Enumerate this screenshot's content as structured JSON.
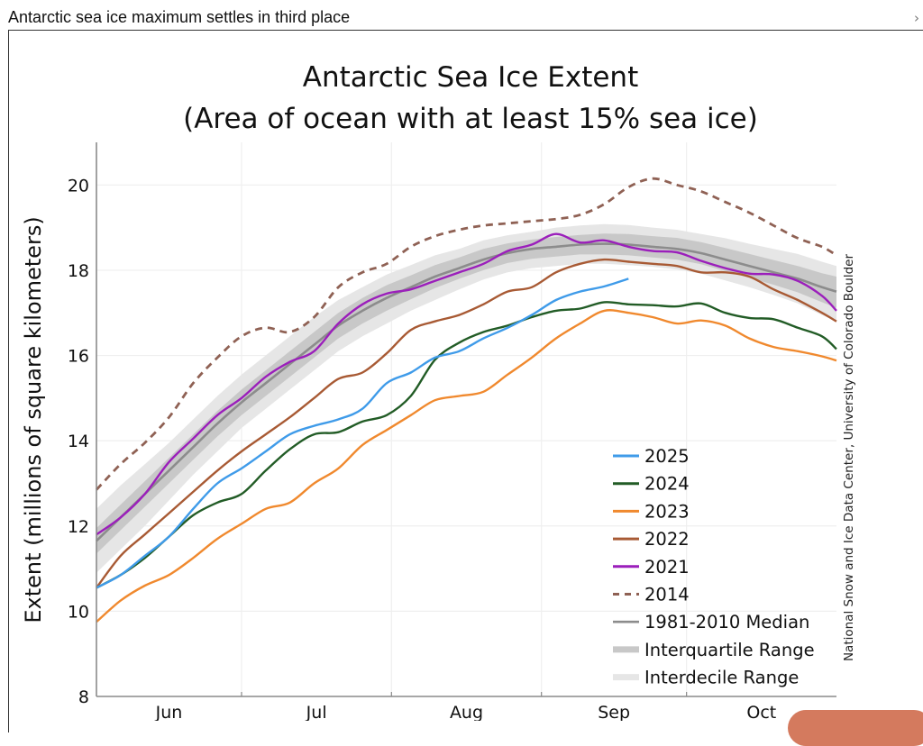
{
  "page": {
    "heading": "Antarctic sea ice maximum settles in third place",
    "close_icon": "chevron-right-icon",
    "close_glyph": "›"
  },
  "chart_data": {
    "type": "line",
    "title": "Antarctic Sea Ice Extent",
    "subtitle": "(Area of ocean with at least 15% sea ice)",
    "xlabel": "",
    "ylabel": "Extent (millions of square kilometers)",
    "credit": "National Snow and Ice Data Center, University of Colorado Boulder",
    "ylim": [
      8,
      21
    ],
    "yticks": [
      8,
      10,
      12,
      14,
      16,
      18,
      20
    ],
    "x_unit": "days since May 31",
    "xlim": [
      0,
      153
    ],
    "month_boundaries": [
      0,
      30,
      61,
      92,
      122,
      153
    ],
    "xtick_labels": [
      "Jun",
      "Jul",
      "Aug",
      "Sep",
      "Oct"
    ],
    "grid": true,
    "legend_position": "lower-right",
    "x": [
      0,
      5,
      10,
      15,
      20,
      25,
      30,
      35,
      40,
      45,
      50,
      55,
      60,
      65,
      70,
      75,
      80,
      85,
      90,
      95,
      100,
      105,
      110,
      115,
      120,
      125,
      130,
      135,
      140,
      145,
      150,
      153
    ],
    "median": {
      "name": "1981-2010 Median",
      "color": "#8c8c8c",
      "values": [
        11.65,
        12.2,
        12.75,
        13.3,
        13.85,
        14.4,
        14.9,
        15.35,
        15.8,
        16.25,
        16.7,
        17.05,
        17.35,
        17.6,
        17.85,
        18.05,
        18.25,
        18.4,
        18.5,
        18.55,
        18.6,
        18.62,
        18.6,
        18.55,
        18.5,
        18.4,
        18.25,
        18.1,
        17.95,
        17.8,
        17.6,
        17.5
      ]
    },
    "interquartile": {
      "name": "Interquartile Range",
      "color": "#c8c8c8",
      "lower": [
        11.35,
        11.9,
        12.45,
        13.0,
        13.55,
        14.1,
        14.6,
        15.05,
        15.5,
        15.95,
        16.4,
        16.75,
        17.05,
        17.32,
        17.58,
        17.8,
        18.0,
        18.17,
        18.27,
        18.32,
        18.37,
        18.37,
        18.35,
        18.3,
        18.25,
        18.14,
        17.98,
        17.82,
        17.66,
        17.48,
        17.25,
        17.12
      ],
      "upper": [
        11.95,
        12.5,
        13.05,
        13.6,
        14.15,
        14.7,
        15.2,
        15.65,
        16.1,
        16.55,
        17.0,
        17.35,
        17.65,
        17.88,
        18.12,
        18.3,
        18.5,
        18.63,
        18.72,
        18.78,
        18.83,
        18.86,
        18.85,
        18.8,
        18.76,
        18.66,
        18.52,
        18.38,
        18.24,
        18.1,
        17.93,
        17.85
      ]
    },
    "interdecile": {
      "name": "Interdecile Range",
      "color": "#e6e6e6",
      "lower": [
        10.9,
        11.45,
        12.0,
        12.6,
        13.2,
        13.75,
        14.3,
        14.75,
        15.2,
        15.65,
        16.1,
        16.45,
        16.75,
        17.05,
        17.3,
        17.55,
        17.78,
        17.95,
        18.05,
        18.1,
        18.15,
        18.15,
        18.12,
        18.08,
        18.02,
        17.92,
        17.76,
        17.6,
        17.42,
        17.22,
        16.95,
        16.8
      ],
      "upper": [
        12.4,
        12.95,
        13.45,
        13.95,
        14.5,
        15.05,
        15.55,
        16.0,
        16.45,
        16.9,
        17.3,
        17.6,
        17.9,
        18.12,
        18.35,
        18.5,
        18.7,
        18.82,
        18.9,
        19.0,
        19.05,
        19.08,
        19.06,
        19.0,
        18.95,
        18.85,
        18.75,
        18.62,
        18.5,
        18.38,
        18.2,
        18.1
      ]
    },
    "series": [
      {
        "name": "2025",
        "color": "#3f9be9",
        "dashed": false,
        "values": [
          10.55,
          10.85,
          11.3,
          11.75,
          12.4,
          13.0,
          13.35,
          13.75,
          14.15,
          14.35,
          14.5,
          14.75,
          15.35,
          15.6,
          15.95,
          16.1,
          16.4,
          16.65,
          16.95,
          17.3,
          17.5,
          17.62,
          17.8,
          null,
          null,
          null,
          null,
          null,
          null,
          null,
          null,
          null
        ]
      },
      {
        "name": "2024",
        "color": "#225c26",
        "dashed": false,
        "values": [
          10.55,
          10.85,
          11.25,
          11.75,
          12.25,
          12.55,
          12.75,
          13.3,
          13.8,
          14.15,
          14.2,
          14.45,
          14.6,
          15.05,
          15.9,
          16.3,
          16.55,
          16.7,
          16.9,
          17.05,
          17.1,
          17.25,
          17.2,
          17.18,
          17.15,
          17.22,
          17.0,
          16.88,
          16.85,
          16.65,
          16.45,
          16.15
        ]
      },
      {
        "name": "2023",
        "color": "#f0892e",
        "dashed": false,
        "values": [
          9.75,
          10.25,
          10.6,
          10.85,
          11.25,
          11.7,
          12.05,
          12.4,
          12.55,
          13.0,
          13.35,
          13.9,
          14.25,
          14.6,
          14.95,
          15.05,
          15.15,
          15.55,
          15.95,
          16.4,
          16.75,
          17.05,
          17.0,
          16.9,
          16.75,
          16.82,
          16.7,
          16.4,
          16.2,
          16.1,
          15.98,
          15.88
        ]
      },
      {
        "name": "2022",
        "color": "#a85a34",
        "dashed": false,
        "values": [
          10.55,
          11.3,
          11.8,
          12.3,
          12.8,
          13.3,
          13.75,
          14.15,
          14.55,
          15.0,
          15.45,
          15.6,
          16.05,
          16.6,
          16.8,
          16.95,
          17.2,
          17.5,
          17.6,
          17.95,
          18.15,
          18.25,
          18.2,
          18.15,
          18.1,
          17.95,
          17.95,
          17.85,
          17.55,
          17.3,
          17.0,
          16.8
        ]
      },
      {
        "name": "2021",
        "color": "#9b1fbb",
        "dashed": false,
        "values": [
          11.8,
          12.2,
          12.75,
          13.5,
          14.05,
          14.6,
          15.0,
          15.5,
          15.85,
          16.1,
          16.75,
          17.2,
          17.45,
          17.55,
          17.75,
          17.95,
          18.15,
          18.45,
          18.6,
          18.85,
          18.65,
          18.7,
          18.55,
          18.45,
          18.42,
          18.22,
          18.05,
          17.92,
          17.9,
          17.75,
          17.4,
          17.05
        ]
      },
      {
        "name": "2014",
        "color": "#8f6154",
        "dashed": true,
        "values": [
          12.85,
          13.45,
          13.95,
          14.55,
          15.35,
          15.95,
          16.45,
          16.65,
          16.55,
          16.9,
          17.6,
          17.95,
          18.15,
          18.55,
          18.8,
          18.95,
          19.05,
          19.1,
          19.15,
          19.2,
          19.3,
          19.55,
          19.95,
          20.15,
          20.0,
          19.85,
          19.6,
          19.35,
          19.05,
          18.75,
          18.55,
          18.35
        ]
      }
    ],
    "legend": [
      "2025",
      "2024",
      "2023",
      "2022",
      "2021",
      "2014",
      "1981-2010 Median",
      "Interquartile Range",
      "Interdecile Range"
    ]
  }
}
